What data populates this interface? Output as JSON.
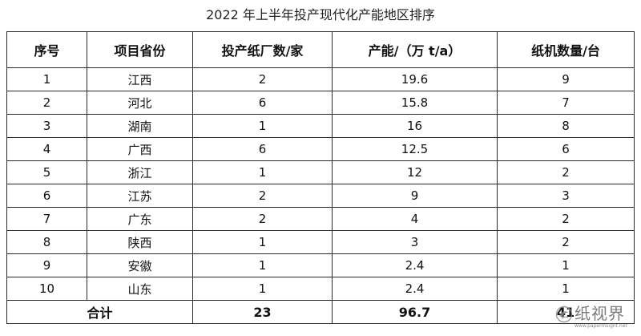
{
  "title": "2022 年上半年投产现代化产能地区排序",
  "table": {
    "headers": [
      "序号",
      "项目省份",
      "投产纸厂数/家",
      "产能/（万 t/a）",
      "纸机数量/台"
    ],
    "rows": [
      [
        "1",
        "江西",
        "2",
        "19.6",
        "9"
      ],
      [
        "2",
        "河北",
        "6",
        "15.8",
        "7"
      ],
      [
        "3",
        "湖南",
        "1",
        "16",
        "8"
      ],
      [
        "4",
        "广西",
        "6",
        "12.5",
        "6"
      ],
      [
        "5",
        "浙江",
        "1",
        "12",
        "2"
      ],
      [
        "6",
        "江苏",
        "2",
        "9",
        "3"
      ],
      [
        "7",
        "广东",
        "2",
        "4",
        "2"
      ],
      [
        "8",
        "陕西",
        "1",
        "3",
        "2"
      ],
      [
        "9",
        "安徽",
        "1",
        "2.4",
        "1"
      ],
      [
        "10",
        "山东",
        "1",
        "2.4",
        "1"
      ]
    ],
    "total": {
      "label": "合计",
      "mills": "23",
      "capacity": "96.7",
      "machines": "41"
    }
  },
  "watermark": {
    "text": "纸视界",
    "url": "www.papermsight.net",
    "logo_icon": "paper-swirl-logo-icon"
  }
}
